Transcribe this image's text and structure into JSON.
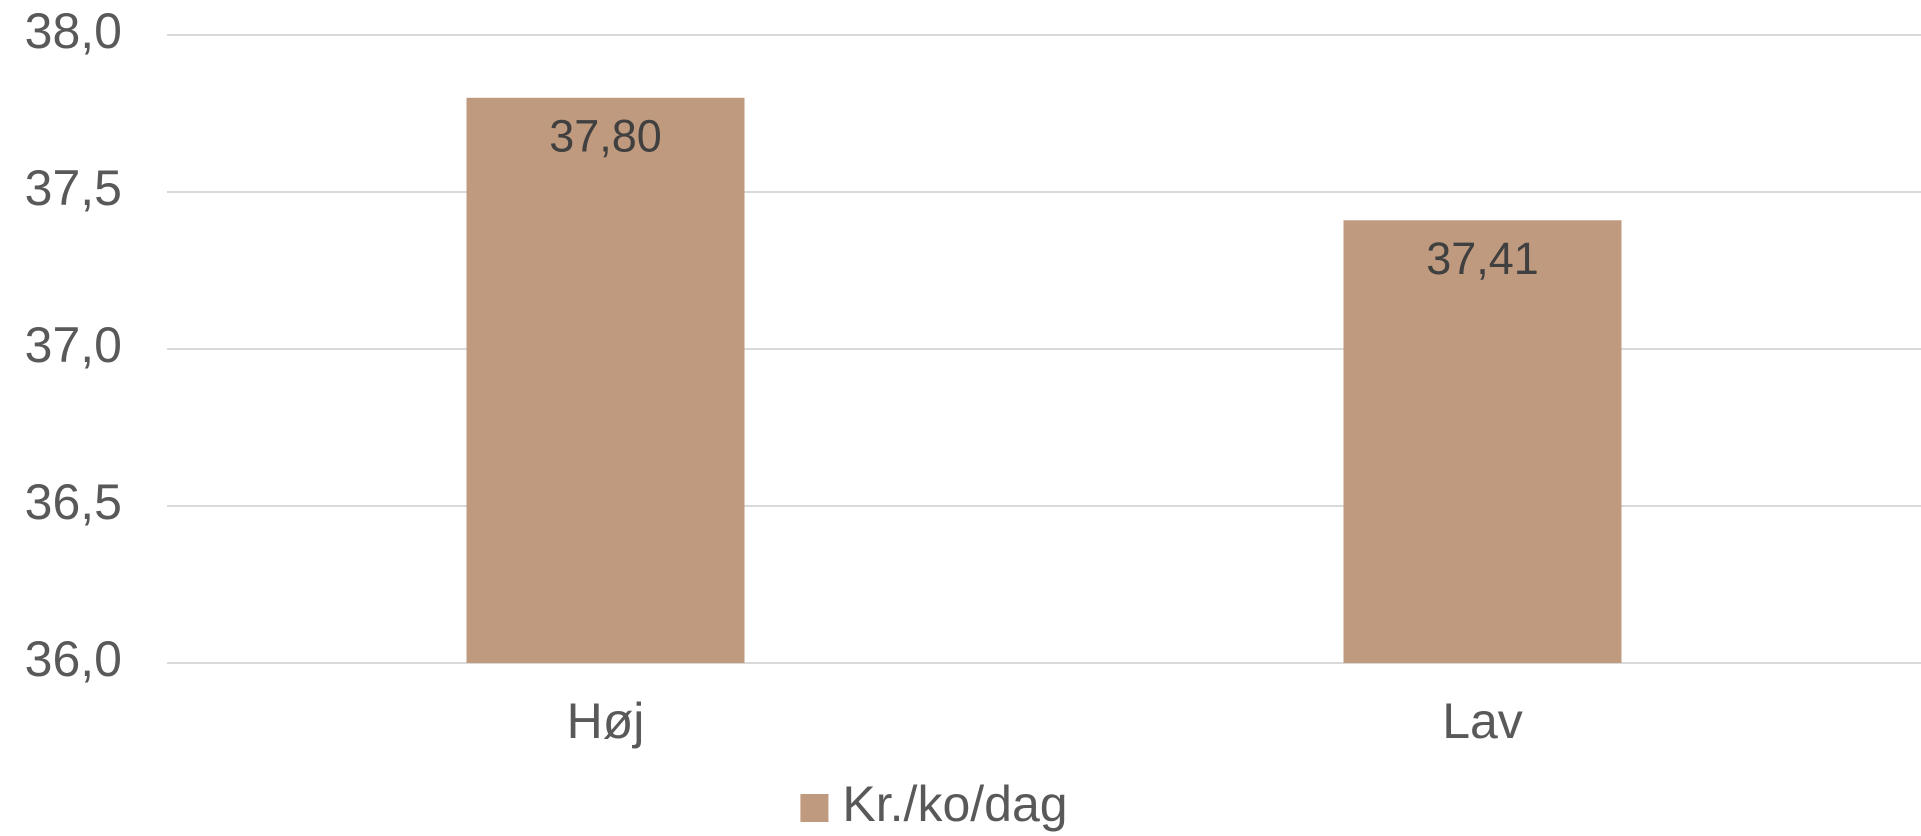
{
  "chart_data": {
    "type": "bar",
    "categories": [
      "Høj",
      "Lav"
    ],
    "series": [
      {
        "name": "Kr./ko/dag",
        "color": "#bf9a7f",
        "values": [
          37.8,
          37.41
        ],
        "value_labels": [
          "37,80",
          "37,41"
        ]
      }
    ],
    "ylim": [
      36,
      38
    ],
    "yticks": [
      {
        "value": 36,
        "label": "36,0"
      },
      {
        "value": 36.5,
        "label": "36,5"
      },
      {
        "value": 37,
        "label": "37,0"
      },
      {
        "value": 37.5,
        "label": "37,5"
      },
      {
        "value": 38,
        "label": "38,0"
      }
    ],
    "grid": true,
    "legend": "bottom"
  }
}
